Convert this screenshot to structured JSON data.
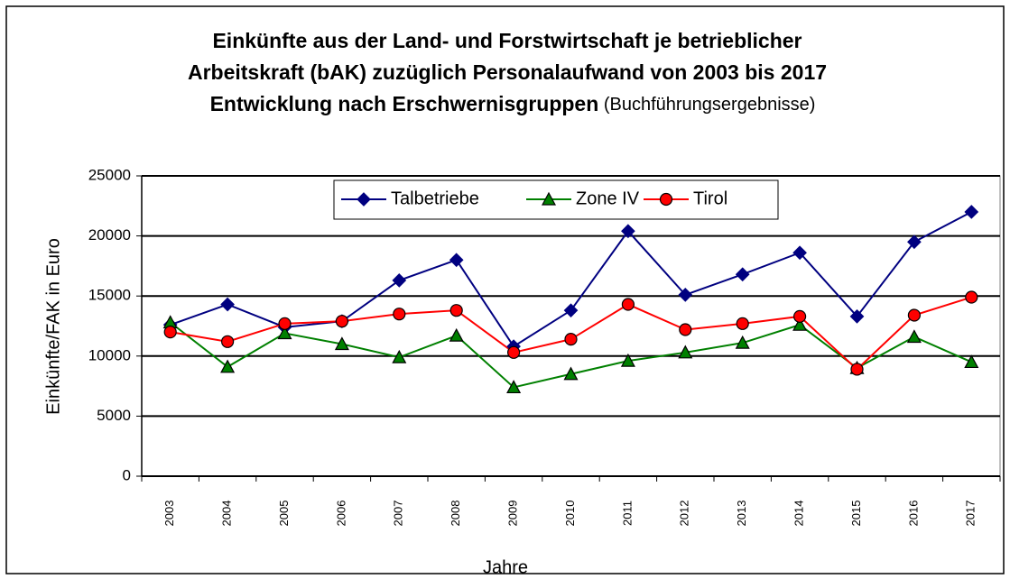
{
  "chart_data": {
    "type": "line",
    "title": [
      "Einkünfte aus der Land- und Forstwirtschaft je betrieblicher",
      "Arbeitskraft (bAK) zuzüglich Personalaufwand von 2003 bis 2017",
      "Entwicklung nach Erschwernisgruppen"
    ],
    "subtitle": "(Buchführungsergebnisse)",
    "x_label": "Jahre",
    "y_label": "Einkünfte/FAK in Euro",
    "categories": [
      "2003",
      "2004",
      "2005",
      "2006",
      "2007",
      "2008",
      "2009",
      "2010",
      "2011",
      "2012",
      "2013",
      "2014",
      "2015",
      "2016",
      "2017"
    ],
    "series": [
      {
        "name": "Talbetriebe",
        "color": "#000080",
        "marker": "diamond",
        "values": [
          12600,
          14300,
          12400,
          12900,
          16300,
          18000,
          10800,
          13800,
          20400,
          15100,
          16800,
          18600,
          13300,
          19500,
          22000
        ]
      },
      {
        "name": "Zone IV",
        "color": "#008000",
        "marker": "triangle",
        "values": [
          12800,
          9100,
          11900,
          11000,
          9900,
          11700,
          7400,
          8500,
          9600,
          10300,
          11100,
          12600,
          9000,
          11600,
          9500
        ]
      },
      {
        "name": "Tirol",
        "color": "#ff0000",
        "marker": "circle",
        "values": [
          12000,
          11200,
          12700,
          12900,
          13500,
          13800,
          10300,
          11400,
          14300,
          12200,
          12700,
          13300,
          8900,
          13400,
          14900
        ]
      }
    ],
    "ylim": [
      0,
      25000
    ],
    "yticks": [
      0,
      5000,
      10000,
      15000,
      20000,
      25000
    ],
    "grid": true,
    "legend": "top"
  }
}
